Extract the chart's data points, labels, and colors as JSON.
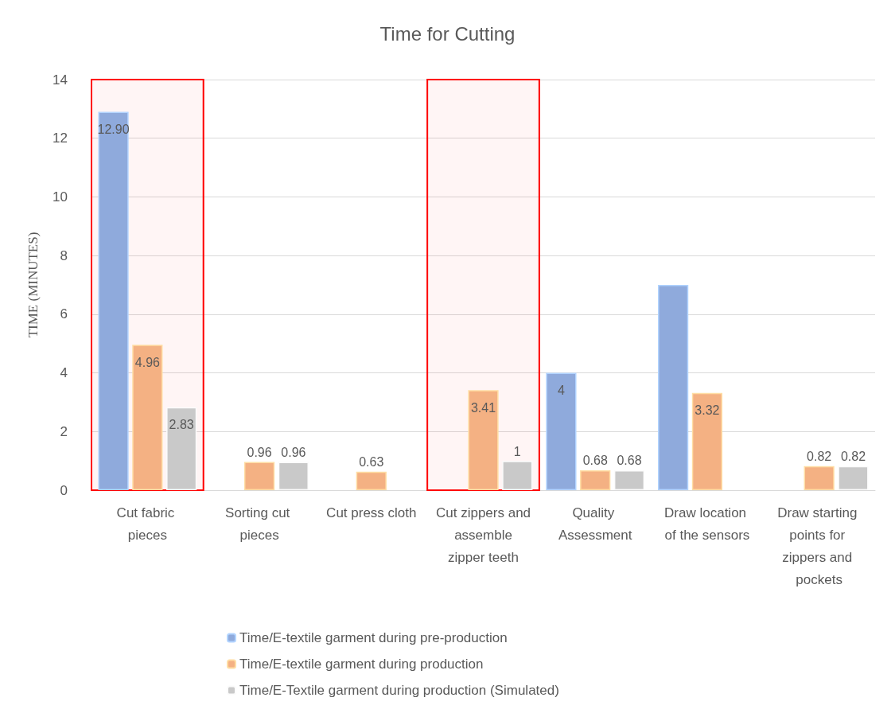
{
  "chart_data": {
    "type": "bar",
    "title": "Time for Cutting",
    "ylabel": "TIME (MINUTES)",
    "categories": [
      "Cut fabric pieces",
      "Sorting cut pieces",
      "Cut press cloth",
      "Cut zippers and assemble zipper teeth",
      "Quality Assessment",
      "Draw location of the sensors",
      "Draw starting points for zippers and pockets"
    ],
    "series": [
      {
        "name": "Time/E-textile garment during pre-production",
        "color": "#8faadc",
        "values": [
          12.9,
          null,
          null,
          null,
          4,
          7,
          null
        ],
        "value_labels": [
          "12.90",
          null,
          null,
          null,
          "4",
          null,
          null
        ]
      },
      {
        "name": "Time/E-textile garment during production",
        "color": "#f4b183",
        "values": [
          4.96,
          0.96,
          0.63,
          3.41,
          0.68,
          3.32,
          0.82
        ],
        "value_labels": [
          "4.96",
          "0.96",
          "0.63",
          "3.41",
          "0.68",
          "3.32",
          "0.82"
        ]
      },
      {
        "name": "Time/E-Textile garment during production (Simulated)",
        "color": "#c9c9c9",
        "values": [
          2.83,
          0.96,
          null,
          1,
          0.68,
          null,
          0.82
        ],
        "value_labels": [
          "2.83",
          "0.96",
          null,
          "1",
          "0.68",
          null,
          "0.82"
        ]
      }
    ],
    "ylim": [
      0,
      14
    ],
    "yticks": [
      0,
      2,
      4,
      6,
      8,
      10,
      12,
      14
    ],
    "grid": "y",
    "legend": "bottom",
    "bands": [
      {
        "axis": "x",
        "from": "Cut fabric pieces",
        "to": "Cut fabric pieces",
        "color": "#ff0000"
      },
      {
        "axis": "x",
        "from": "Cut zippers and assemble zipper teeth",
        "to": "Cut zippers and assemble zipper teeth",
        "color": "#ff0000"
      }
    ]
  }
}
